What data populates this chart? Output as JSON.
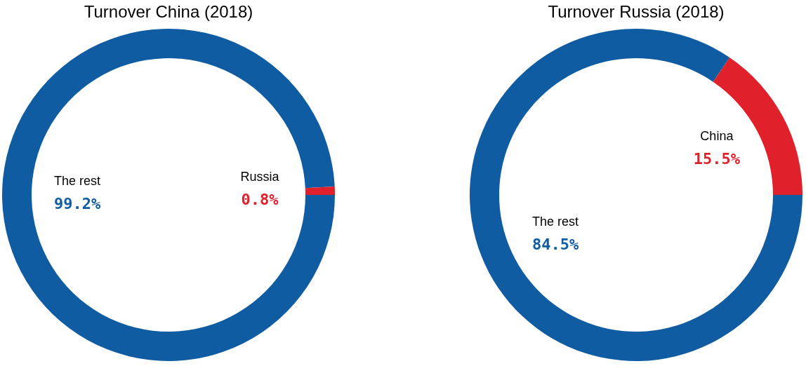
{
  "chart_data": [
    {
      "type": "donut",
      "title": "Turnover China (2018)",
      "categories": [
        "The rest",
        "Russia"
      ],
      "values": [
        99.2,
        0.8
      ],
      "colors": [
        "#0f5ca3",
        "#e0202a"
      ],
      "value_labels": [
        "99.2%",
        "0.8%"
      ],
      "legend": false
    },
    {
      "type": "donut",
      "title": "Turnover Russia (2018)",
      "categories": [
        "The rest",
        "China"
      ],
      "values": [
        84.5,
        15.5
      ],
      "colors": [
        "#0f5ca3",
        "#e0202a"
      ],
      "value_labels": [
        "84.5%",
        "15.5%"
      ],
      "legend": false
    }
  ]
}
